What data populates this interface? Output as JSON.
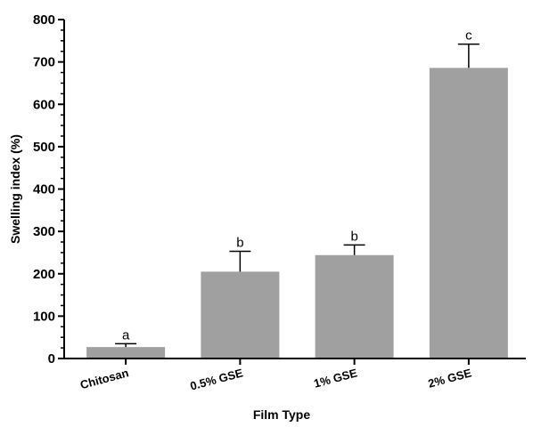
{
  "chart_data": {
    "type": "bar",
    "title": "",
    "xlabel": "Film Type",
    "ylabel": "Swelling index (%)",
    "categories": [
      "Chitosan",
      "0.5% GSE",
      "1% GSE",
      "2% GSE"
    ],
    "values": [
      27,
      205,
      244,
      686
    ],
    "error_upper": [
      8,
      48,
      24,
      56
    ],
    "significance_labels": [
      "a",
      "b",
      "b",
      "c"
    ],
    "ylim": [
      0,
      800
    ],
    "yticks": [
      0,
      100,
      200,
      300,
      400,
      500,
      600,
      700,
      800
    ],
    "bar_color": "#a0a0a0",
    "grid": false
  }
}
